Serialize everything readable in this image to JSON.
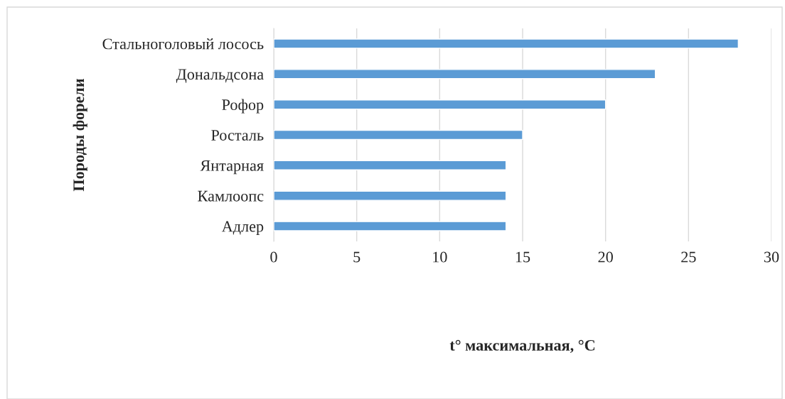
{
  "chart_data": {
    "type": "bar",
    "orientation": "horizontal",
    "categories": [
      "Стальноголовый лосось",
      "Дональдсона",
      "Рофор",
      "Росталь",
      "Янтарная",
      "Камлоопс",
      "Адлер"
    ],
    "values": [
      28,
      23,
      20,
      15,
      14,
      14,
      14
    ],
    "color": "#5b9bd5",
    "xlabel": "t° максимальная, °C",
    "ylabel": "Породы форели",
    "xlim": [
      0,
      30
    ],
    "xticks": [
      0,
      5,
      10,
      15,
      20,
      25,
      30
    ],
    "grid": "x",
    "legend": false
  }
}
